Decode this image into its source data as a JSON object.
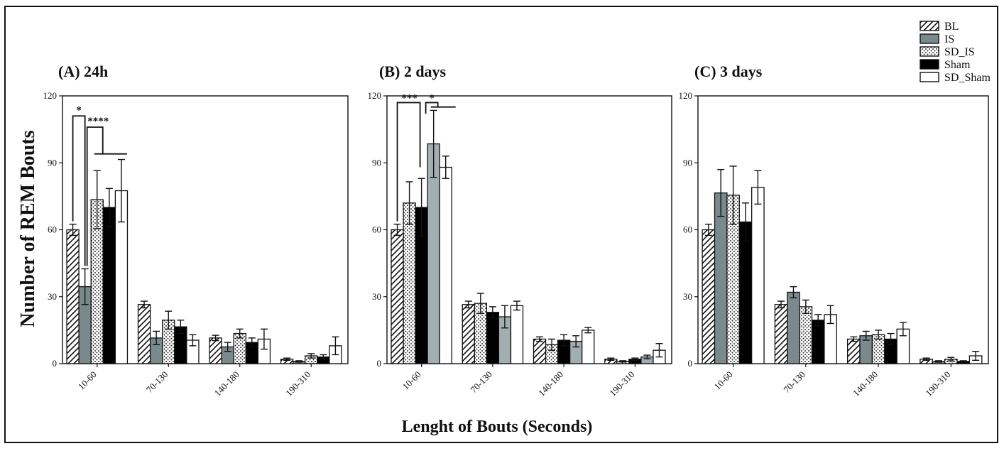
{
  "chart_data": {
    "type": "bar",
    "ylabel": "Number of REM Bouts",
    "xlabel": "Lenght of Bouts (Seconds)",
    "ylim": [
      0,
      120
    ],
    "yticks": [
      "0",
      "30",
      "60",
      "90",
      "120"
    ],
    "categories": [
      "10-60",
      "70-130",
      "140-180",
      "190-310"
    ],
    "legend": {
      "position": "top-right",
      "entries": [
        "BL",
        "IS",
        "SD_IS",
        "Sham",
        "SD_Sham"
      ]
    },
    "series_styles": {
      "BL": {
        "pattern": "diagonal-hatch",
        "color": "#ffffff"
      },
      "IS": {
        "pattern": "solid",
        "color": "#7a8a8c"
      },
      "SD_IS": {
        "pattern": "dots",
        "color": "#ffffff"
      },
      "Sham": {
        "pattern": "solid",
        "color": "#000000"
      },
      "SD_Sham": {
        "pattern": "solid",
        "color": "#ffffff"
      },
      "IS_panel_B": {
        "pattern": "solid",
        "color": "#a3aeb0"
      }
    },
    "panels": [
      {
        "title": "(A) 24h",
        "series_order": [
          "BL",
          "IS",
          "SD_IS",
          "Sham",
          "SD_Sham"
        ],
        "series": [
          {
            "name": "BL",
            "values": [
              60,
              26.5,
              11.5,
              2
            ],
            "errors": [
              2.5,
              1.5,
              1.2,
              0.5
            ]
          },
          {
            "name": "IS",
            "values": [
              34.5,
              11.5,
              7.5,
              1
            ],
            "errors": [
              8,
              3,
              2,
              0.3
            ]
          },
          {
            "name": "SD_IS",
            "values": [
              73.5,
              19.5,
              13.5,
              3.5
            ],
            "errors": [
              13,
              4,
              2,
              1
            ]
          },
          {
            "name": "Sham",
            "values": [
              70,
              16.5,
              9.5,
              3
            ],
            "errors": [
              8.5,
              3,
              2,
              1
            ]
          },
          {
            "name": "SD_Sham",
            "values": [
              77.5,
              10.5,
              11,
              8
            ],
            "errors": [
              14,
              2.5,
              4.5,
              4
            ]
          }
        ],
        "significance": [
          "*",
          "****"
        ]
      },
      {
        "title": "(B) 2 days",
        "series_order": [
          "BL",
          "SD_IS",
          "Sham",
          "IS",
          "SD_Sham"
        ],
        "series": [
          {
            "name": "BL",
            "values": [
              60,
              26.5,
              11,
              2
            ],
            "errors": [
              2.5,
              1.5,
              1,
              0.5
            ]
          },
          {
            "name": "SD_IS",
            "values": [
              72,
              27,
              8.5,
              1
            ],
            "errors": [
              9.5,
              4.5,
              2.5,
              0.3
            ]
          },
          {
            "name": "Sham",
            "values": [
              70,
              23,
              10.5,
              2
            ],
            "errors": [
              13,
              2.5,
              2.5,
              0.5
            ]
          },
          {
            "name": "IS",
            "values": [
              98.5,
              21,
              10,
              3
            ],
            "errors": [
              15,
              5,
              2.5,
              0.8
            ]
          },
          {
            "name": "SD_Sham",
            "values": [
              88,
              26,
              15,
              6
            ],
            "errors": [
              5,
              2,
              1.2,
              3
            ]
          }
        ],
        "significance": [
          "***",
          "*"
        ]
      },
      {
        "title": "(C) 3 days",
        "series_order": [
          "BL",
          "IS",
          "SD_IS",
          "Sham",
          "SD_Sham"
        ],
        "series": [
          {
            "name": "BL",
            "values": [
              60,
              26.5,
              11,
              2
            ],
            "errors": [
              2.5,
              1.5,
              1,
              0.5
            ]
          },
          {
            "name": "IS",
            "values": [
              76.5,
              32,
              12.5,
              1
            ],
            "errors": [
              10.5,
              2.5,
              2,
              0.3
            ]
          },
          {
            "name": "SD_IS",
            "values": [
              75.5,
              25.5,
              13,
              2
            ],
            "errors": [
              13,
              3,
              2,
              0.8
            ]
          },
          {
            "name": "Sham",
            "values": [
              63.5,
              19.5,
              11,
              1
            ],
            "errors": [
              8.5,
              2.5,
              2.5,
              0.3
            ]
          },
          {
            "name": "SD_Sham",
            "values": [
              79,
              22,
              15.5,
              3.5
            ],
            "errors": [
              7.5,
              4,
              3,
              2
            ]
          }
        ],
        "significance": []
      }
    ]
  }
}
